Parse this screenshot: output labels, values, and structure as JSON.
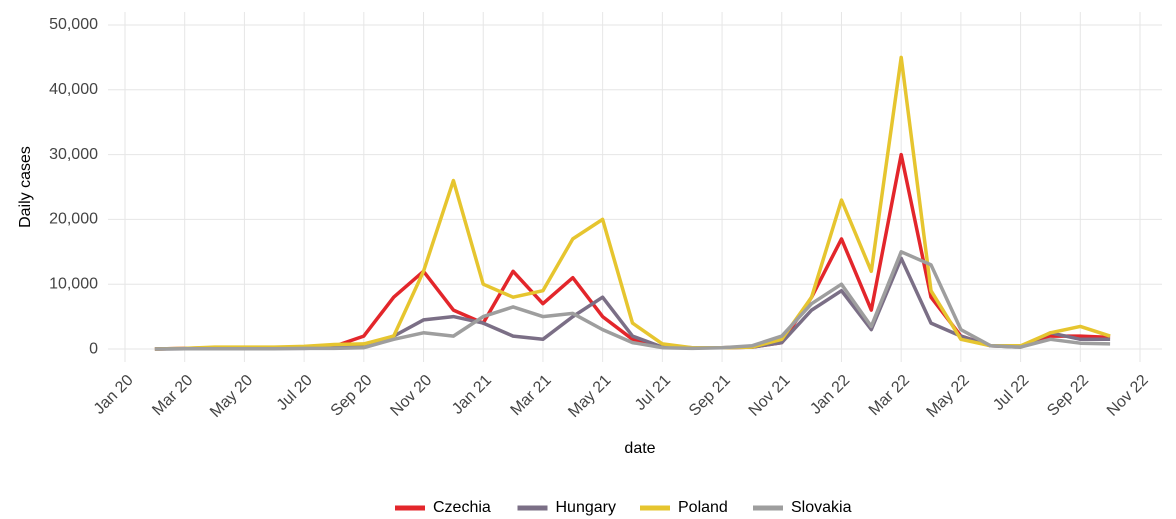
{
  "chart_data": {
    "type": "line",
    "ylabel": "Daily cases",
    "xlabel": "date",
    "x": [
      "2020-02",
      "2020-03",
      "2020-04",
      "2020-05",
      "2020-06",
      "2020-07",
      "2020-08",
      "2020-09",
      "2020-10",
      "2020-11",
      "2020-12",
      "2021-01",
      "2021-02",
      "2021-03",
      "2021-04",
      "2021-05",
      "2021-06",
      "2021-07",
      "2021-08",
      "2021-09",
      "2021-10",
      "2021-11",
      "2021-12",
      "2022-01",
      "2022-02",
      "2022-03",
      "2022-04",
      "2022-05",
      "2022-06",
      "2022-07",
      "2022-08",
      "2022-09",
      "2022-10"
    ],
    "series": [
      {
        "name": "Czechia",
        "color": "#e3262b",
        "values": [
          0,
          100,
          200,
          100,
          150,
          300,
          400,
          2000,
          8000,
          12000,
          6000,
          4000,
          12000,
          7000,
          11000,
          5000,
          1500,
          300,
          200,
          200,
          300,
          1000,
          8000,
          17000,
          6000,
          30000,
          8000,
          2000,
          500,
          400,
          2000,
          2000,
          1800
        ]
      },
      {
        "name": "Hungary",
        "color": "#7b6f86",
        "values": [
          0,
          50,
          100,
          100,
          100,
          100,
          200,
          500,
          2000,
          4500,
          5000,
          4000,
          2000,
          1500,
          5000,
          8000,
          2000,
          300,
          200,
          200,
          300,
          1000,
          6000,
          9000,
          3000,
          14000,
          4000,
          2000,
          500,
          300,
          2500,
          1500,
          1500
        ]
      },
      {
        "name": "Poland",
        "color": "#e6c52f",
        "values": [
          0,
          100,
          300,
          300,
          300,
          400,
          700,
          800,
          2000,
          12000,
          26000,
          10000,
          8000,
          9000,
          17000,
          20000,
          4000,
          800,
          200,
          200,
          300,
          1500,
          8000,
          23000,
          12000,
          45000,
          9000,
          1500,
          500,
          500,
          2500,
          3500,
          2000
        ]
      },
      {
        "name": "Slovakia",
        "color": "#9e9e9e",
        "values": [
          0,
          50,
          50,
          50,
          50,
          100,
          100,
          200,
          1500,
          2500,
          2000,
          5000,
          6500,
          5000,
          5500,
          3000,
          1000,
          200,
          100,
          200,
          500,
          2000,
          7000,
          10000,
          3500,
          15000,
          13000,
          3000,
          500,
          300,
          1500,
          900,
          800
        ]
      }
    ],
    "xlim": [
      "2020-01",
      "2022-11"
    ],
    "xticks": [
      {
        "value": "2020-01",
        "label": "Jan 20"
      },
      {
        "value": "2020-03",
        "label": "Mar 20"
      },
      {
        "value": "2020-05",
        "label": "May 20"
      },
      {
        "value": "2020-07",
        "label": "Jul 20"
      },
      {
        "value": "2020-09",
        "label": "Sep 20"
      },
      {
        "value": "2020-11",
        "label": "Nov 20"
      },
      {
        "value": "2021-01",
        "label": "Jan 21"
      },
      {
        "value": "2021-03",
        "label": "Mar 21"
      },
      {
        "value": "2021-05",
        "label": "May 21"
      },
      {
        "value": "2021-07",
        "label": "Jul 21"
      },
      {
        "value": "2021-09",
        "label": "Sep 21"
      },
      {
        "value": "2021-11",
        "label": "Nov 21"
      },
      {
        "value": "2022-01",
        "label": "Jan 22"
      },
      {
        "value": "2022-03",
        "label": "Mar 22"
      },
      {
        "value": "2022-05",
        "label": "May 22"
      },
      {
        "value": "2022-07",
        "label": "Jul 22"
      },
      {
        "value": "2022-09",
        "label": "Sep 22"
      },
      {
        "value": "2022-11",
        "label": "Nov 22"
      }
    ],
    "ylim": [
      -2000,
      52000
    ],
    "yticks": [
      0,
      {
        "value": 10000,
        "label": "10,000"
      },
      {
        "value": 20000,
        "label": "20,000"
      },
      {
        "value": 30000,
        "label": "30,000"
      },
      {
        "value": 40000,
        "label": "40,000"
      },
      {
        "value": 50000,
        "label": "50,000"
      }
    ],
    "grid": true,
    "legend": "bottom"
  }
}
